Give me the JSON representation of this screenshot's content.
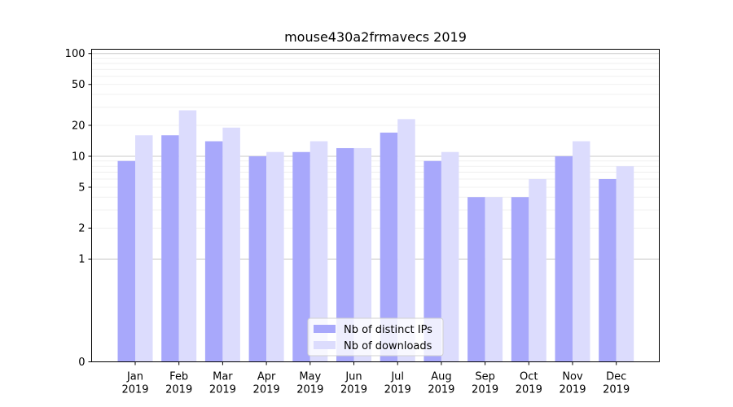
{
  "chart_data": {
    "type": "bar",
    "title": "mouse430a2frmavecs 2019",
    "xlabel": "",
    "ylabel": "",
    "y_scale": "symlog",
    "ylim": [
      0,
      110
    ],
    "yticks": [
      0,
      1,
      2,
      5,
      10,
      20,
      50,
      100
    ],
    "ytick_labels": [
      "0",
      "1",
      "2",
      "5",
      "10",
      "20",
      "50",
      "100"
    ],
    "categories": [
      "Jan\n2019",
      "Feb\n2019",
      "Mar\n2019",
      "Apr\n2019",
      "May\n2019",
      "Jun\n2019",
      "Jul\n2019",
      "Aug\n2019",
      "Sep\n2019",
      "Oct\n2019",
      "Nov\n2019",
      "Dec\n2019"
    ],
    "series": [
      {
        "name": "Nb of distinct IPs",
        "color": "#a8a8fb",
        "values": [
          9,
          16,
          14,
          10,
          11,
          12,
          17,
          9,
          4,
          4,
          10,
          6
        ]
      },
      {
        "name": "Nb of downloads",
        "color": "#dcdcfd",
        "values": [
          16,
          28,
          19,
          11,
          14,
          12,
          23,
          11,
          4,
          6,
          14,
          8
        ]
      }
    ],
    "grid": true,
    "legend_position": "lower-center"
  }
}
